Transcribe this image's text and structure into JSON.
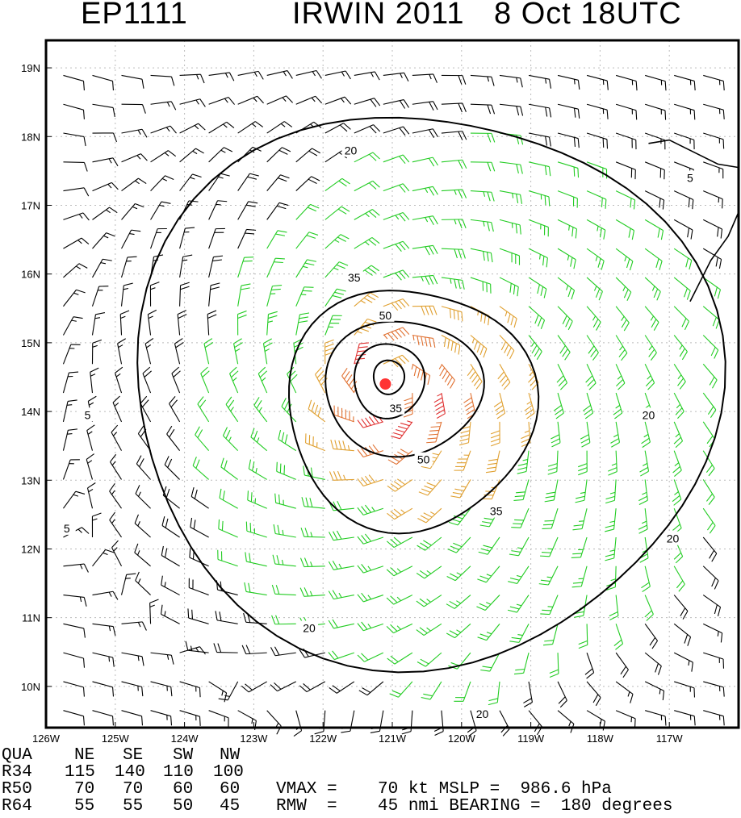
{
  "header": {
    "storm_id": "EP1111",
    "storm_title": "IRWIN 2011",
    "datetime": "8 Oct 18UTC"
  },
  "map": {
    "lat_labels": [
      "10N",
      "11N",
      "12N",
      "13N",
      "14N",
      "15N",
      "16N",
      "17N",
      "18N",
      "19N"
    ],
    "lon_labels": [
      "126W",
      "125W",
      "124W",
      "123W",
      "122W",
      "121W",
      "120W",
      "119W",
      "118W",
      "117W"
    ],
    "lat_range": [
      9.4,
      19.4
    ],
    "lon_range": [
      -126.0,
      -116.0
    ],
    "storm_center": {
      "lat": 14.4,
      "lon": -121.1
    },
    "contour_labels": [
      {
        "value": "20",
        "lat": 17.8,
        "lon": -121.6
      },
      {
        "value": "20",
        "lat": 13.95,
        "lon": -117.3
      },
      {
        "value": "20",
        "lat": 12.15,
        "lon": -116.95
      },
      {
        "value": "20",
        "lat": 10.85,
        "lon": -122.2
      },
      {
        "value": "20",
        "lat": 9.6,
        "lon": -119.7
      },
      {
        "value": "35",
        "lat": 15.95,
        "lon": -121.55
      },
      {
        "value": "35",
        "lat": 12.55,
        "lon": -119.5
      },
      {
        "value": "35",
        "lat": 14.05,
        "lon": -120.95
      },
      {
        "value": "50",
        "lat": 15.4,
        "lon": -121.1
      },
      {
        "value": "50",
        "lat": 13.3,
        "lon": -120.55
      },
      {
        "value": "5",
        "lat": 17.4,
        "lon": -116.7
      },
      {
        "value": "5",
        "lat": 13.95,
        "lon": -125.4
      },
      {
        "value": "5",
        "lat": 12.3,
        "lon": -125.7
      }
    ],
    "colors": {
      "background": "#ffffff",
      "land_outline": "#000000",
      "contour": "#000000",
      "barb_black": "#000000",
      "barb_green": "#22cc22",
      "barb_orange": "#e0a030",
      "barb_dark_orange": "#e07030",
      "barb_red": "#e03030",
      "center_marker": "#ff3333",
      "grid": "#bbbbbb"
    }
  },
  "table": {
    "header_row": [
      "QUA",
      "NE",
      "SE",
      "SW",
      "NW"
    ],
    "rows": [
      {
        "label": "R34",
        "values": [
          "115",
          "140",
          "110",
          "100"
        ],
        "extra": ""
      },
      {
        "label": "R50",
        "values": [
          "70",
          "70",
          "60",
          "60"
        ],
        "extra": "VMAX =    70 kt MSLP =  986.6 hPa"
      },
      {
        "label": "R64",
        "values": [
          "55",
          "55",
          "50",
          "45"
        ],
        "extra": "RMW  =    45 nmi BEARING =  180 degrees"
      }
    ]
  }
}
